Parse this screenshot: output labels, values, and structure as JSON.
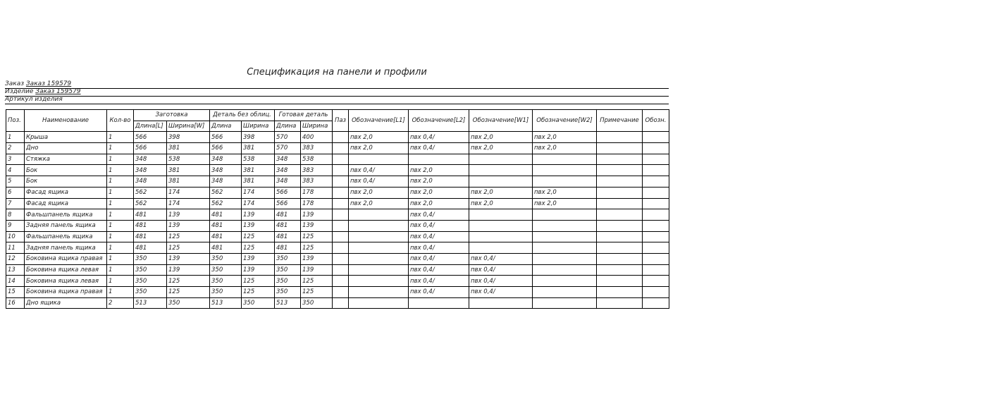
{
  "title": "Спецификация на панели и профили",
  "order": {
    "label": "Заказ",
    "value": "Заказ 159579"
  },
  "product": {
    "label": "Изделие",
    "value": "Заказ 159579"
  },
  "article": {
    "label": "Артикул изделия",
    "value": ""
  },
  "headers": {
    "pos": "Поз.",
    "name": "Наименование",
    "qty": "Кол-во",
    "blank": "Заготовка",
    "blank_l": "Длина[L]",
    "blank_w": "Ширина[W]",
    "raw": "Деталь без облиц.",
    "raw_l": "Длина",
    "raw_w": "Ширина",
    "fin": "Готовая деталь",
    "fin_l": "Длина",
    "fin_w": "Ширина",
    "paz": "Паз",
    "l1": "Обозначение[L1]",
    "l2": "Обозначение[L2]",
    "w1": "Обозначение[W1]",
    "w2": "Обозначение[W2]",
    "note": "Примечание",
    "des": "Обозн."
  },
  "rows": [
    [
      "1",
      "Крыша",
      "1",
      "566",
      "398",
      "566",
      "398",
      "570",
      "400",
      "",
      "пвх 2,0",
      "пвх 0,4/",
      "пвх 2,0",
      "пвх 2,0",
      "",
      ""
    ],
    [
      "2",
      "Дно",
      "1",
      "566",
      "381",
      "566",
      "381",
      "570",
      "383",
      "",
      "пвх 2,0",
      "пвх 0,4/",
      "пвх 2,0",
      "пвх 2,0",
      "",
      ""
    ],
    [
      "3",
      "Стяжка",
      "1",
      "348",
      "538",
      "348",
      "538",
      "348",
      "538",
      "",
      "",
      "",
      "",
      "",
      "",
      ""
    ],
    [
      "4",
      "Бок",
      "1",
      "348",
      "381",
      "348",
      "381",
      "348",
      "383",
      "",
      "пвх 0,4/",
      "пвх 2,0",
      "",
      "",
      "",
      ""
    ],
    [
      "5",
      "Бок",
      "1",
      "348",
      "381",
      "348",
      "381",
      "348",
      "383",
      "",
      "пвх 0,4/",
      "пвх 2,0",
      "",
      "",
      "",
      ""
    ],
    [
      "6",
      "Фасад ящика",
      "1",
      "562",
      "174",
      "562",
      "174",
      "566",
      "178",
      "",
      "пвх 2,0",
      "пвх 2,0",
      "пвх 2,0",
      "пвх 2,0",
      "",
      ""
    ],
    [
      "7",
      "Фасад ящика",
      "1",
      "562",
      "174",
      "562",
      "174",
      "566",
      "178",
      "",
      "пвх 2,0",
      "пвх 2,0",
      "пвх 2,0",
      "пвх 2,0",
      "",
      ""
    ],
    [
      "8",
      "Фальшпанель ящика",
      "1",
      "481",
      "139",
      "481",
      "139",
      "481",
      "139",
      "",
      "",
      "пвх 0,4/",
      "",
      "",
      "",
      ""
    ],
    [
      "9",
      "Задняя панель ящика",
      "1",
      "481",
      "139",
      "481",
      "139",
      "481",
      "139",
      "",
      "",
      "пвх 0,4/",
      "",
      "",
      "",
      ""
    ],
    [
      "10",
      "Фальшпанель ящика",
      "1",
      "481",
      "125",
      "481",
      "125",
      "481",
      "125",
      "",
      "",
      "пвх 0,4/",
      "",
      "",
      "",
      ""
    ],
    [
      "11",
      "Задняя панель ящика",
      "1",
      "481",
      "125",
      "481",
      "125",
      "481",
      "125",
      "",
      "",
      "пвх 0,4/",
      "",
      "",
      "",
      ""
    ],
    [
      "12",
      "Боковина ящика правая",
      "1",
      "350",
      "139",
      "350",
      "139",
      "350",
      "139",
      "",
      "",
      "пвх 0,4/",
      "пвх 0,4/",
      "",
      "",
      ""
    ],
    [
      "13",
      "Боковина ящика левая",
      "1",
      "350",
      "139",
      "350",
      "139",
      "350",
      "139",
      "",
      "",
      "пвх 0,4/",
      "пвх 0,4/",
      "",
      "",
      ""
    ],
    [
      "14",
      "Боковина ящика левая",
      "1",
      "350",
      "125",
      "350",
      "125",
      "350",
      "125",
      "",
      "",
      "пвх 0,4/",
      "пвх 0,4/",
      "",
      "",
      ""
    ],
    [
      "15",
      "Боковина ящика правая",
      "1",
      "350",
      "125",
      "350",
      "125",
      "350",
      "125",
      "",
      "",
      "пвх 0,4/",
      "пвх 0,4/",
      "",
      "",
      ""
    ],
    [
      "16",
      "Дно ящика",
      "2",
      "513",
      "350",
      "513",
      "350",
      "513",
      "350",
      "",
      "",
      "",
      "",
      "",
      "",
      ""
    ]
  ]
}
